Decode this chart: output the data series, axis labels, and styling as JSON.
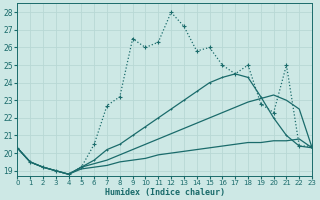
{
  "xlabel": "Humidex (Indice chaleur)",
  "xlim": [
    0,
    23
  ],
  "ylim": [
    18.7,
    28.5
  ],
  "xticks": [
    0,
    1,
    2,
    3,
    4,
    5,
    6,
    7,
    8,
    9,
    10,
    11,
    12,
    13,
    14,
    15,
    16,
    17,
    18,
    19,
    20,
    21,
    22,
    23
  ],
  "yticks": [
    19,
    20,
    21,
    22,
    23,
    24,
    25,
    26,
    27,
    28
  ],
  "bg": "#cde8e5",
  "grid_color": "#b8d8d5",
  "lc": "#1a6b6b",
  "line_dotted_x": [
    0,
    1,
    2,
    3,
    4,
    5,
    6,
    7,
    8,
    9,
    10,
    11,
    12,
    13,
    14,
    15,
    16,
    17,
    18,
    19,
    20,
    21,
    22,
    23
  ],
  "line_dotted_y": [
    20.3,
    19.5,
    19.2,
    19.0,
    18.8,
    19.2,
    20.5,
    22.7,
    23.2,
    26.5,
    26.0,
    26.3,
    28.0,
    27.2,
    25.8,
    26.0,
    25.0,
    24.5,
    25.0,
    22.8,
    22.3,
    25.0,
    20.4,
    20.4
  ],
  "line_solid1_x": [
    0,
    1,
    2,
    3,
    4,
    5,
    6,
    7,
    8,
    9,
    10,
    11,
    12,
    13,
    14,
    15,
    16,
    17,
    18,
    19,
    20,
    21,
    22,
    23
  ],
  "line_solid1_y": [
    20.3,
    19.5,
    19.2,
    19.0,
    18.8,
    19.2,
    19.6,
    20.2,
    20.5,
    21.0,
    21.5,
    22.0,
    22.5,
    23.0,
    23.5,
    24.0,
    24.3,
    24.5,
    24.3,
    23.2,
    22.0,
    21.0,
    20.4,
    20.3
  ],
  "line_solid2_x": [
    0,
    1,
    2,
    3,
    4,
    5,
    6,
    7,
    8,
    9,
    10,
    11,
    12,
    13,
    14,
    15,
    16,
    17,
    18,
    19,
    20,
    21,
    22,
    23
  ],
  "line_solid2_y": [
    20.3,
    19.5,
    19.2,
    19.0,
    18.8,
    19.2,
    19.4,
    19.6,
    19.9,
    20.2,
    20.5,
    20.8,
    21.1,
    21.4,
    21.7,
    22.0,
    22.3,
    22.6,
    22.9,
    23.1,
    23.3,
    23.0,
    22.5,
    20.3
  ],
  "line_flat_x": [
    0,
    1,
    2,
    3,
    4,
    5,
    6,
    7,
    8,
    9,
    10,
    11,
    12,
    13,
    14,
    15,
    16,
    17,
    18,
    19,
    20,
    21,
    22,
    23
  ],
  "line_flat_y": [
    20.3,
    19.5,
    19.2,
    19.0,
    18.8,
    19.1,
    19.2,
    19.3,
    19.5,
    19.6,
    19.7,
    19.9,
    20.0,
    20.1,
    20.2,
    20.3,
    20.4,
    20.5,
    20.6,
    20.6,
    20.7,
    20.7,
    20.8,
    20.3
  ]
}
